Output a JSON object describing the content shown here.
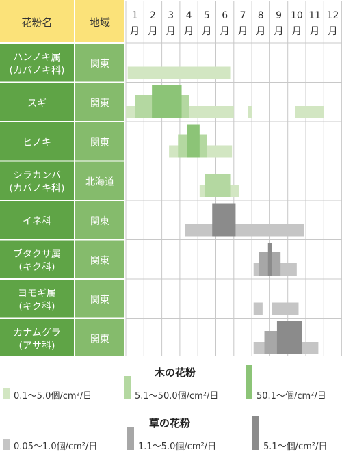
{
  "chart_data": {
    "type": "table",
    "header": {
      "plant_col": "花粉名",
      "region_col": "地域"
    },
    "months": [
      "1",
      "2",
      "3",
      "4",
      "5",
      "6",
      "7",
      "8",
      "9",
      "10",
      "11",
      "12"
    ],
    "month_suffix": "月",
    "rows": [
      {
        "name": [
          "ハンノキ属",
          "(カバノキ科)"
        ],
        "region": "関東",
        "category": "tree",
        "bars": [
          {
            "start": 1.1,
            "end": 6.8,
            "level": 1
          }
        ]
      },
      {
        "name": [
          "スギ"
        ],
        "region": "関東",
        "category": "tree",
        "bars": [
          {
            "start": 1.0,
            "end": 1.1,
            "level": 1
          },
          {
            "start": 1.1,
            "end": 2.45,
            "level": 1
          },
          {
            "start": 1.1,
            "end": 7.0,
            "level": 1
          },
          {
            "start": 1.5,
            "end": 4.5,
            "level": 2
          },
          {
            "start": 2.45,
            "end": 4.1,
            "level": 3
          },
          {
            "start": 7.8,
            "end": 8.0,
            "level": 1
          },
          {
            "start": 10.4,
            "end": 12.0,
            "level": 1
          }
        ]
      },
      {
        "name": [
          "ヒノキ"
        ],
        "region": "関東",
        "category": "tree",
        "bars": [
          {
            "start": 3.4,
            "end": 6.9,
            "level": 1
          },
          {
            "start": 3.9,
            "end": 5.5,
            "level": 2
          },
          {
            "start": 4.4,
            "end": 5.1,
            "level": 3
          }
        ]
      },
      {
        "name": [
          "シラカンバ",
          "(カバノキ科)"
        ],
        "region": "北海道",
        "category": "tree",
        "bars": [
          {
            "start": 5.1,
            "end": 7.3,
            "level": 1
          },
          {
            "start": 5.4,
            "end": 6.8,
            "level": 2
          }
        ]
      },
      {
        "name": [
          "イネ科"
        ],
        "region": "関東",
        "category": "grass",
        "bars": [
          {
            "start": 4.3,
            "end": 10.9,
            "level": 1
          },
          {
            "start": 5.8,
            "end": 7.1,
            "level": 3
          }
        ]
      },
      {
        "name": [
          "ブタクサ属",
          "(キク科)"
        ],
        "region": "関東",
        "category": "grass",
        "bars": [
          {
            "start": 8.1,
            "end": 10.5,
            "level": 1
          },
          {
            "start": 8.4,
            "end": 9.6,
            "level": 2
          },
          {
            "start": 8.9,
            "end": 9.1,
            "level": 3
          }
        ]
      },
      {
        "name": [
          "ヨモギ属",
          "(キク科)"
        ],
        "region": "関東",
        "category": "grass",
        "bars": [
          {
            "start": 8.1,
            "end": 8.6,
            "level": 1
          },
          {
            "start": 9.1,
            "end": 10.6,
            "level": 1
          }
        ]
      },
      {
        "name": [
          "カナムグラ",
          "(アサ科)"
        ],
        "region": "関東",
        "category": "grass",
        "bars": [
          {
            "start": 8.1,
            "end": 11.7,
            "level": 1
          },
          {
            "start": 8.7,
            "end": 10.7,
            "level": 2
          },
          {
            "start": 9.4,
            "end": 10.8,
            "level": 3
          }
        ]
      }
    ],
    "legend": {
      "tree": {
        "title": "木の花粉",
        "items": [
          {
            "label": "0.1～5.0個/cm²/日",
            "level": 1
          },
          {
            "label": "5.1～50.0個/cm²/日",
            "level": 2
          },
          {
            "label": "50.1～個/cm²/日",
            "level": 3
          }
        ]
      },
      "grass": {
        "title": "草の花粉",
        "items": [
          {
            "label": "0.05～1.0個/cm²/日",
            "level": 1
          },
          {
            "label": "1.1～5.0個/cm²/日",
            "level": 2
          },
          {
            "label": "5.1～個/cm²/日",
            "level": 3
          }
        ]
      }
    },
    "colors": {
      "header_bg": "#fbe279",
      "plant_cell": "#5fa446",
      "region_cell": "#85bb6c",
      "grid": "#c8c8c8",
      "tree": [
        "#d2e6c2",
        "#b4d8a1",
        "#8cc477"
      ],
      "grass": [
        "#c5c5c5",
        "#a7a7a7",
        "#8b8b8b"
      ]
    }
  }
}
